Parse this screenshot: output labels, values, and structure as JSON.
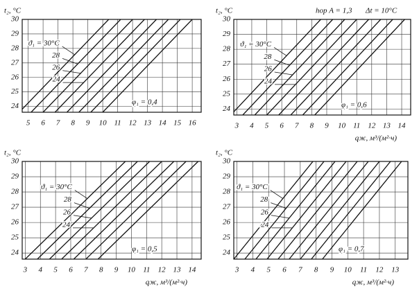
{
  "chart_data": [
    {
      "type": "line",
      "y_label": "t₂, °C",
      "xlim": [
        4.6,
        16.6
      ],
      "ylim": [
        23.6,
        30
      ],
      "xticks": [
        5,
        6,
        7,
        8,
        9,
        10,
        11,
        12,
        13,
        14,
        15,
        16
      ],
      "yticks": [
        24,
        25,
        26,
        27,
        28,
        29,
        30
      ],
      "grid": true,
      "color": "#111111",
      "note": "φ₁ = 0,4",
      "series": [
        {
          "name": "ϑ₁ = 30°C",
          "x": [
            4.4,
            10.4
          ],
          "values": [
            23.6,
            30
          ]
        },
        {
          "name": "28",
          "x": [
            5.2,
            11.2
          ],
          "values": [
            23.6,
            30
          ]
        },
        {
          "name": "26",
          "x": [
            6.0,
            12.0
          ],
          "values": [
            23.6,
            30
          ]
        },
        {
          "name": "24",
          "x": [
            6.8,
            12.8
          ],
          "values": [
            23.6,
            30
          ]
        },
        {
          "x": [
            7.6,
            13.6
          ],
          "values": [
            23.6,
            30
          ]
        },
        {
          "x": [
            8.4,
            14.4
          ],
          "values": [
            23.6,
            30
          ]
        },
        {
          "x": [
            9.2,
            15.2
          ],
          "values": [
            23.6,
            30
          ]
        },
        {
          "x": [
            10.0,
            16.0
          ],
          "values": [
            23.6,
            30
          ]
        }
      ]
    },
    {
      "type": "line",
      "y_label": "t₂, °C",
      "x_label": "qж, м³/(м²·ч)",
      "xlim": [
        2.8,
        14.6
      ],
      "ylim": [
        23.6,
        30
      ],
      "xticks": [
        3,
        4,
        5,
        6,
        7,
        8,
        9,
        10,
        11,
        12,
        13,
        14
      ],
      "yticks": [
        24,
        25,
        26,
        27,
        28,
        29,
        30
      ],
      "grid": true,
      "color": "#111111",
      "annotations": [
        "hор A = 1,3",
        "Δt = 10°C"
      ],
      "note": "φ₁ = 0,6",
      "series": [
        {
          "name": "ϑ₁ = 30°C",
          "x": [
            2.6,
            8.6
          ],
          "values": [
            23.6,
            30
          ]
        },
        {
          "name": "28",
          "x": [
            3.4,
            9.4
          ],
          "values": [
            23.6,
            30
          ]
        },
        {
          "name": "26",
          "x": [
            4.2,
            10.2
          ],
          "values": [
            23.6,
            30
          ]
        },
        {
          "name": "24",
          "x": [
            5.0,
            11.0
          ],
          "values": [
            23.6,
            30
          ]
        },
        {
          "x": [
            5.8,
            11.8
          ],
          "values": [
            23.6,
            30
          ]
        },
        {
          "x": [
            6.6,
            12.6
          ],
          "values": [
            23.6,
            30
          ]
        },
        {
          "x": [
            7.4,
            13.4
          ],
          "values": [
            23.6,
            30
          ]
        },
        {
          "x": [
            8.2,
            14.2
          ],
          "values": [
            23.6,
            30
          ]
        }
      ]
    },
    {
      "type": "line",
      "y_label": "t₂, °C",
      "x_label": "qж, м³/(м²·ч)",
      "xlim": [
        2.8,
        14.6
      ],
      "ylim": [
        23.6,
        30
      ],
      "xticks": [
        3,
        4,
        5,
        6,
        7,
        8,
        9,
        10,
        11,
        12,
        13,
        14
      ],
      "yticks": [
        24,
        25,
        26,
        27,
        28,
        29,
        30
      ],
      "grid": true,
      "color": "#111111",
      "note": "φ₁ = 0,5",
      "series": [
        {
          "name": "ϑ₁ = 30°C",
          "x": [
            3.0,
            9.6
          ],
          "values": [
            23.6,
            30
          ]
        },
        {
          "name": "28",
          "x": [
            3.8,
            10.4
          ],
          "values": [
            23.6,
            30
          ]
        },
        {
          "name": "26",
          "x": [
            4.6,
            11.2
          ],
          "values": [
            23.6,
            30
          ]
        },
        {
          "name": "24",
          "x": [
            5.4,
            12.0
          ],
          "values": [
            23.6,
            30
          ]
        },
        {
          "x": [
            6.2,
            12.8
          ],
          "values": [
            23.6,
            30
          ]
        },
        {
          "x": [
            7.0,
            13.6
          ],
          "values": [
            23.6,
            30
          ]
        },
        {
          "x": [
            7.8,
            14.4
          ],
          "values": [
            23.6,
            30
          ]
        }
      ]
    },
    {
      "type": "line",
      "y_label": "t₂, °C",
      "x_label": "qж, м³/(м²·ч)",
      "xlim": [
        2.8,
        13.8
      ],
      "ylim": [
        23.6,
        30
      ],
      "xticks": [
        3,
        4,
        5,
        6,
        7,
        8,
        9,
        10,
        11,
        12,
        13
      ],
      "yticks": [
        24,
        25,
        26,
        27,
        28,
        29,
        30
      ],
      "grid": true,
      "color": "#111111",
      "note": "φ₁ = 0,7",
      "series": [
        {
          "name": "ϑ₁ = 30°C",
          "x": [
            2.8,
            7.8
          ],
          "values": [
            23.6,
            30
          ]
        },
        {
          "name": "28",
          "x": [
            3.5,
            8.5
          ],
          "values": [
            23.6,
            30
          ]
        },
        {
          "name": "26",
          "x": [
            4.2,
            9.2
          ],
          "values": [
            23.6,
            30
          ]
        },
        {
          "name": "24",
          "x": [
            4.9,
            9.9
          ],
          "values": [
            23.6,
            30
          ]
        },
        {
          "x": [
            5.6,
            10.6
          ],
          "values": [
            23.6,
            30
          ]
        },
        {
          "x": [
            6.3,
            11.3
          ],
          "values": [
            23.6,
            30
          ]
        },
        {
          "x": [
            7.0,
            12.0
          ],
          "values": [
            23.6,
            30
          ]
        },
        {
          "x": [
            7.7,
            12.7
          ],
          "values": [
            23.6,
            30
          ]
        },
        {
          "x": [
            8.4,
            13.4
          ],
          "values": [
            23.6,
            30
          ]
        }
      ]
    }
  ]
}
